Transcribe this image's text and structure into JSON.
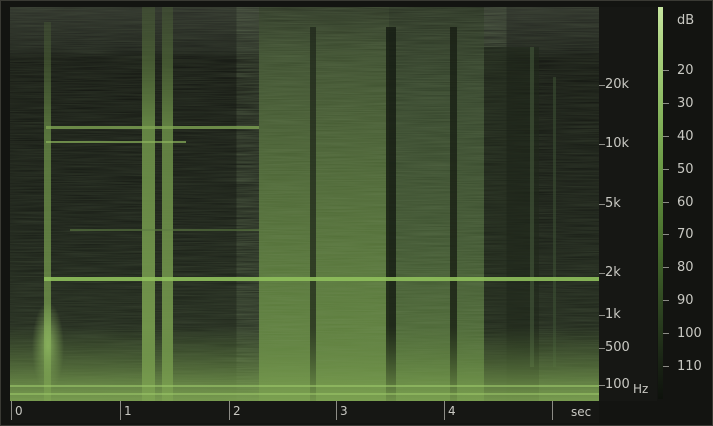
{
  "freq_axis": {
    "unit": "Hz",
    "ticks": [
      "20k",
      "10k",
      "5k",
      "2k",
      "1k",
      "500",
      "100"
    ]
  },
  "db_axis": {
    "unit": "dB",
    "ticks": [
      "20",
      "30",
      "40",
      "50",
      "60",
      "70",
      "80",
      "90",
      "100",
      "110"
    ]
  },
  "time_axis": {
    "unit": "sec",
    "ticks": [
      "0",
      "1",
      "2",
      "3",
      "4"
    ]
  },
  "colors": {
    "background": "#131411",
    "spectrum_low": "#0e120c",
    "spectrum_high": "#c7e6a0",
    "accent": "#8fc05c"
  }
}
